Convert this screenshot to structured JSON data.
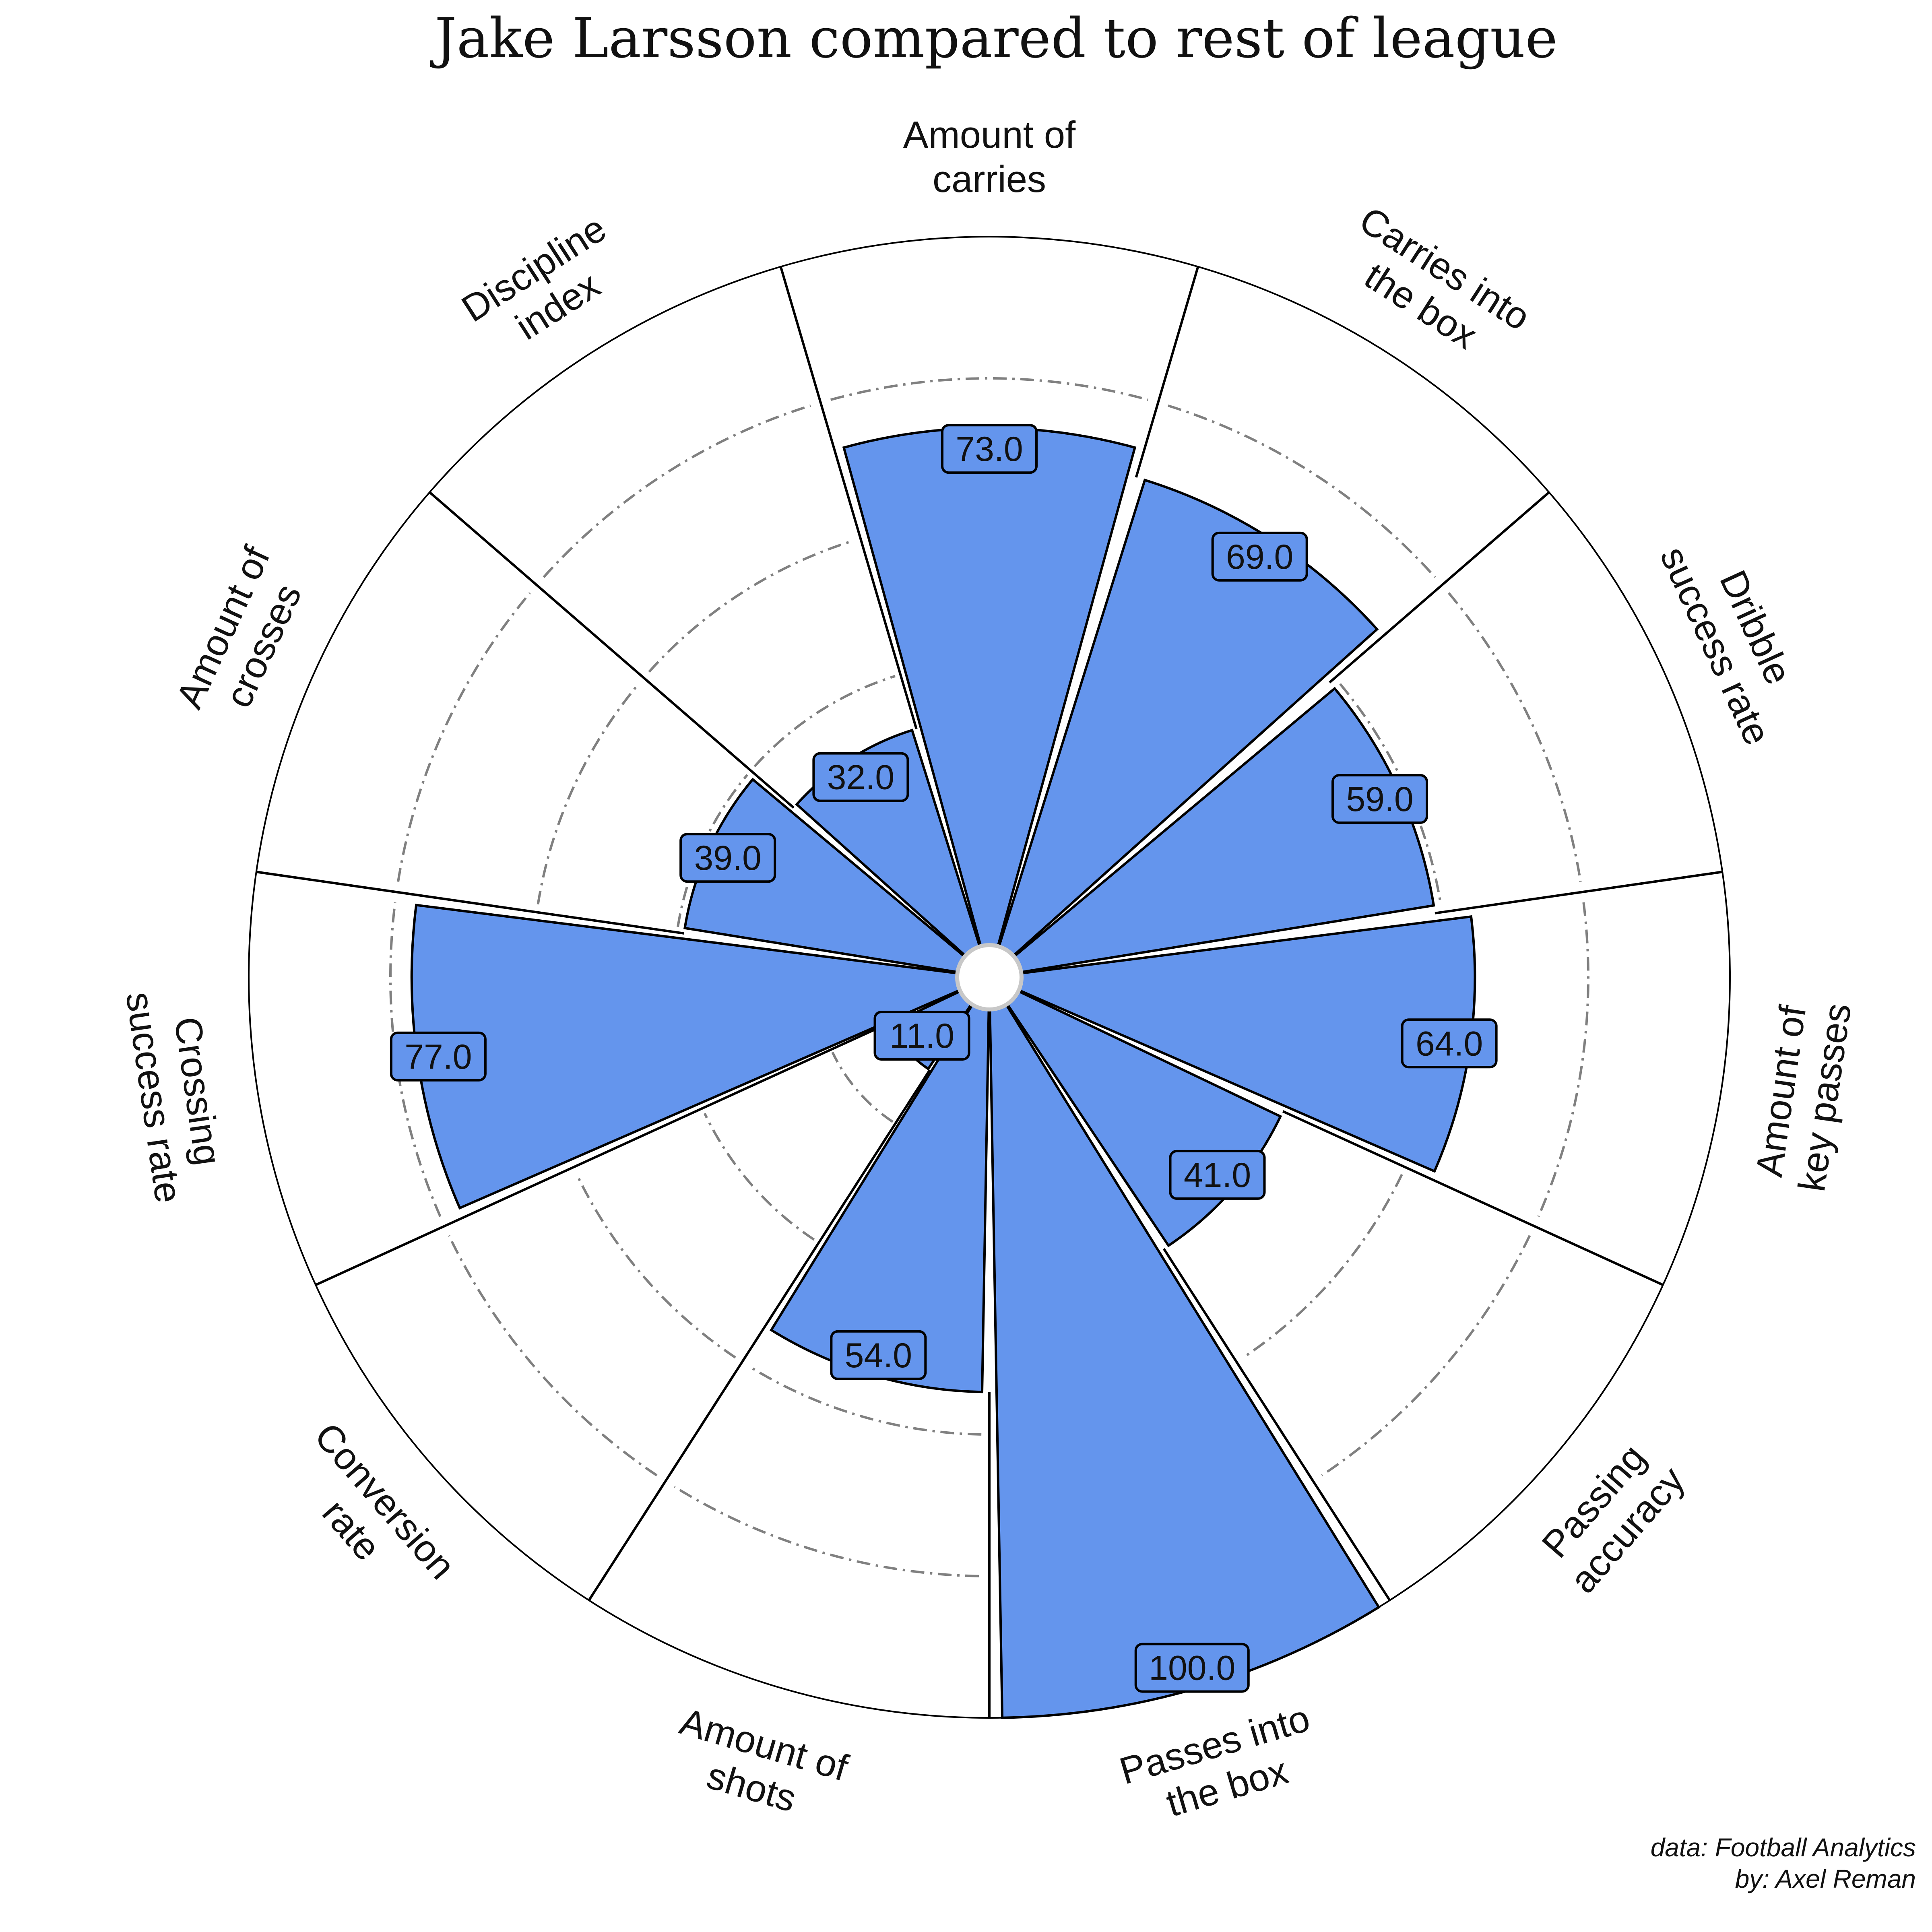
{
  "chart_data": {
    "type": "polar-bar",
    "title": "Jake Larsson compared to rest of league",
    "categories": [
      [
        "Amount of",
        "carries"
      ],
      [
        "Carries into",
        "the box"
      ],
      [
        "Dribble",
        "success rate"
      ],
      [
        "Amount of",
        "key passes"
      ],
      [
        "Passing",
        "accuracy"
      ],
      [
        "Passes into",
        "the box"
      ],
      [
        "Amount of",
        "shots"
      ],
      [
        "Conversion",
        "rate"
      ],
      [
        "Crossing",
        "success rate"
      ],
      [
        "Amount of",
        "crosses"
      ],
      [
        "Discipline",
        "index"
      ]
    ],
    "values": [
      73,
      69,
      59,
      64,
      41,
      100,
      54,
      11,
      77,
      39,
      32
    ],
    "value_labels": [
      "73.0",
      "69.0",
      "59.0",
      "64.0",
      "41.0",
      "100.0",
      "54.0",
      "11.0",
      "77.0",
      "39.0",
      "32.0"
    ],
    "rlim": [
      0,
      100
    ],
    "gridlines": [
      20,
      40,
      60,
      80
    ],
    "colors": {
      "bar": "#6495ED",
      "edge": "#000000",
      "grid": "#808080",
      "label_box": "#6495ED",
      "center": "#ffffff",
      "center_edge": "#c8c8c8"
    }
  },
  "credits": {
    "data_source": "data: Football Analytics",
    "author": "by: Axel Reman"
  }
}
